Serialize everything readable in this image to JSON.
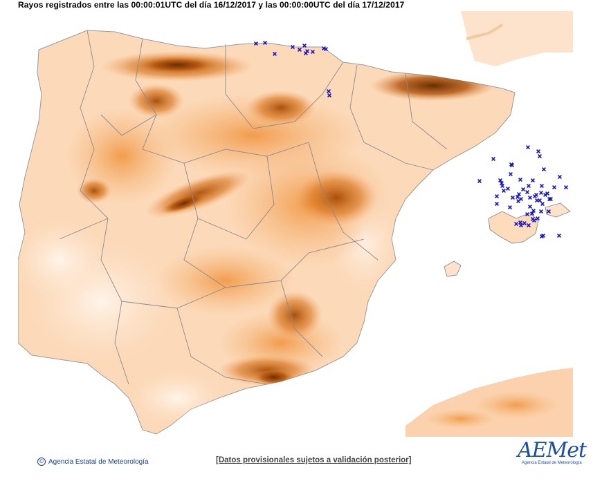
{
  "title": "Rayos registrados entre las 00:00:01UTC del día 16/12/2017 y las 00:00:00UTC del día 17/12/2017",
  "footer": {
    "copyright_symbol": "©",
    "copyright_text": "Agencia Estatal de Meteorología",
    "disclaimer": "[Datos provisionales sujetos a validación posterior]"
  },
  "logo": {
    "word": "AEMet",
    "subtitle": "Agencia Estatal de Meteorología"
  },
  "colors": {
    "relief_low": "#fde3cc",
    "relief_mid": "#f5a860",
    "relief_high": "#c45a08",
    "relief_peak": "#7a3403",
    "borders": "#8a8a8a",
    "lightning": "#1010c8"
  },
  "map": {
    "marker_symbol": "x",
    "strike_count_groups": [
      {
        "area": "Cantabrian coast / Basque Country",
        "count": 15
      },
      {
        "area": "Western Mediterranean off Balearic Islands",
        "count": 60
      }
    ]
  }
}
